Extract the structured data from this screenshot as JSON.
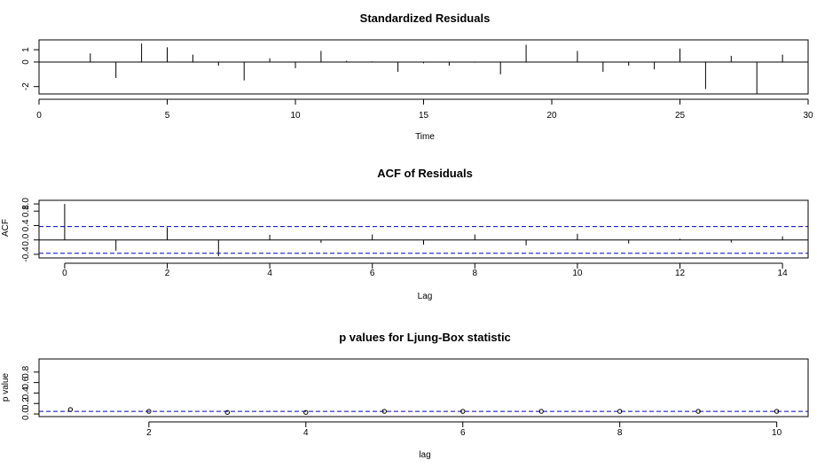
{
  "chart_data": [
    {
      "type": "bar",
      "title": "Standardized Residuals",
      "xlabel": "Time",
      "ylabel": "",
      "xlim": [
        0,
        30
      ],
      "ylim": [
        -2.6,
        1.8
      ],
      "x_ticks": [
        0,
        5,
        10,
        15,
        20,
        25,
        30
      ],
      "y_ticks": [
        -2,
        0,
        1
      ],
      "x": [
        2,
        3,
        4,
        5,
        6,
        7,
        8,
        9,
        10,
        11,
        12,
        13,
        14,
        15,
        16,
        17,
        18,
        19,
        20,
        21,
        22,
        23,
        24,
        25,
        26,
        27,
        28,
        29
      ],
      "values": [
        0.7,
        -1.3,
        1.5,
        1.2,
        0.6,
        -0.3,
        -1.5,
        0.3,
        -0.5,
        0.9,
        0.1,
        0.05,
        -0.8,
        -0.1,
        -0.3,
        -0.05,
        -1.0,
        1.4,
        0.0,
        0.9,
        -0.8,
        -0.3,
        -0.6,
        1.1,
        -2.2,
        0.5,
        -2.6,
        0.6
      ]
    },
    {
      "type": "bar",
      "title": "ACF of Residuals",
      "xlabel": "Lag",
      "ylabel": "ACF",
      "xlim": [
        -0.5,
        14.5
      ],
      "ylim": [
        -0.5,
        1.1
      ],
      "x_ticks": [
        0,
        2,
        4,
        6,
        8,
        10,
        12,
        14
      ],
      "y_ticks": [
        -0.4,
        0.0,
        0.4,
        0.8,
        1.0
      ],
      "y_tick_labels": [
        "-0.4",
        "0.0",
        "0.4",
        "0.8",
        "1.0"
      ],
      "x": [
        0,
        1,
        2,
        3,
        4,
        5,
        6,
        7,
        8,
        9,
        10,
        11,
        12,
        13,
        14
      ],
      "values": [
        1.0,
        -0.3,
        0.35,
        -0.45,
        0.14,
        -0.08,
        0.15,
        -0.13,
        0.15,
        -0.15,
        0.17,
        -0.1,
        0.03,
        -0.07,
        0.1
      ],
      "conf_band": 0.37
    },
    {
      "type": "scatter",
      "title": "p values for Ljung-Box statistic",
      "xlabel": "lag",
      "ylabel": "p value",
      "xlim": [
        0.6,
        10.4
      ],
      "ylim": [
        -0.05,
        1.05
      ],
      "x_ticks": [
        2,
        4,
        6,
        8,
        10
      ],
      "y_ticks": [
        0.0,
        0.2,
        0.4,
        0.6,
        0.8
      ],
      "y_tick_labels": [
        "0.0",
        "0.2",
        "0.4",
        "0.6",
        "0.8"
      ],
      "x": [
        1,
        2,
        3,
        4,
        5,
        6,
        7,
        8,
        9,
        10
      ],
      "values": [
        0.085,
        0.05,
        0.03,
        0.03,
        0.05,
        0.05,
        0.05,
        0.05,
        0.05,
        0.05
      ],
      "ref_line": 0.05
    }
  ],
  "colors": {
    "axis": "#000000",
    "reference": "#0000cc",
    "points": "#000000"
  }
}
